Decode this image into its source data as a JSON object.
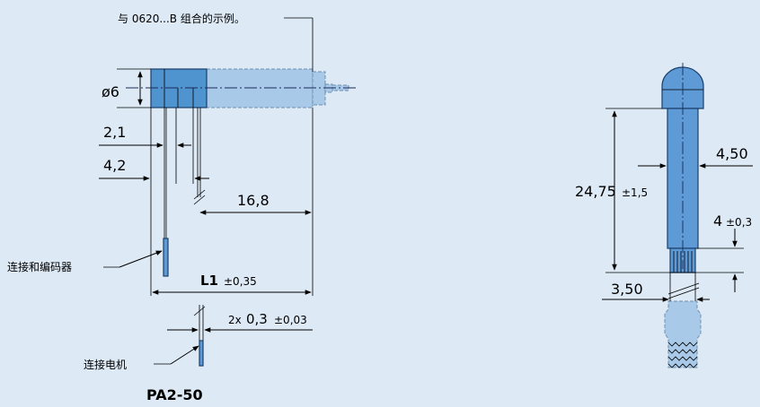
{
  "left_view": {
    "note": "与 0620...B 组合的示例。",
    "dim_diameter": "ø6",
    "dim_a": "2,1",
    "dim_b": "4,2",
    "dim_length": "16,8",
    "dim_l1_main": "L1",
    "dim_l1_tol": "±0,35",
    "dim_pin_prefix": "2x",
    "dim_pin_main": "0,3",
    "dim_pin_tol": "±0,03",
    "label_encoder": "连接和编码器",
    "label_motor": "连接电机",
    "title": "PA2-50"
  },
  "right_view": {
    "dim_length_main": "24,75",
    "dim_length_tol": "±1,5",
    "dim_width": "4,50",
    "dim_pin_main": "4",
    "dim_pin_tol": "±0,3",
    "dim_pitch": "3,50"
  },
  "colors": {
    "background": "#dde9f5",
    "body": "#4f93cf",
    "body_light": "#a9c9e8"
  }
}
